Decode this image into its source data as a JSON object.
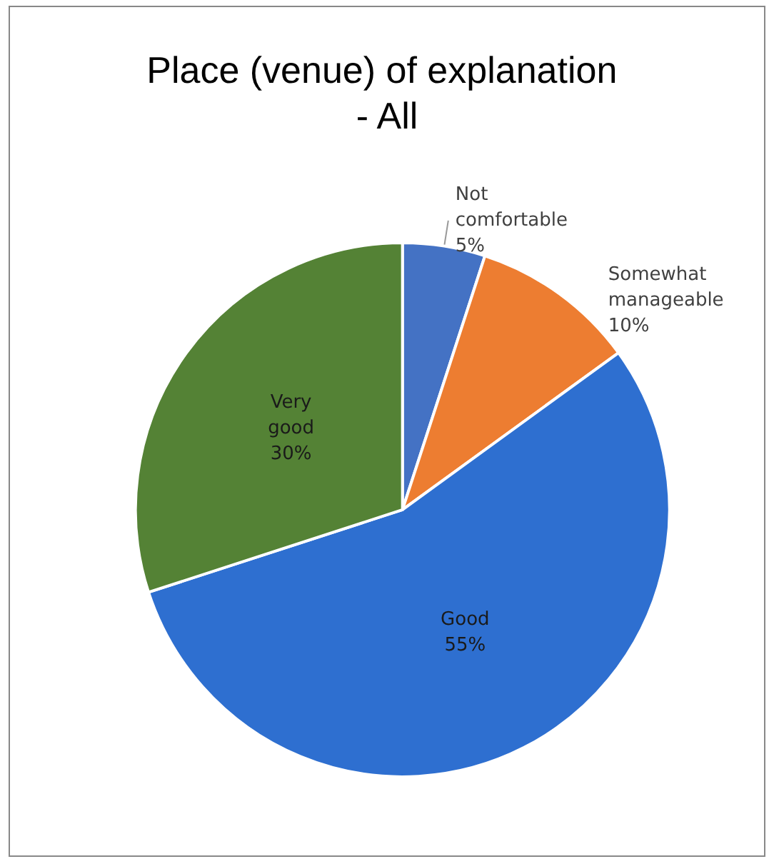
{
  "chart_data": {
    "type": "pie",
    "title": "Place (venue) of explanation - All",
    "categories": [
      "Not comfortable",
      "Somewhat manageable",
      "Good",
      "Very good"
    ],
    "values": [
      5,
      10,
      55,
      30
    ],
    "colors": [
      "#4472c4",
      "#ed7d31",
      "#2e6fd0",
      "#548235"
    ],
    "value_labels": [
      "5%",
      "10%",
      "55%",
      "30%"
    ],
    "legend": false
  }
}
